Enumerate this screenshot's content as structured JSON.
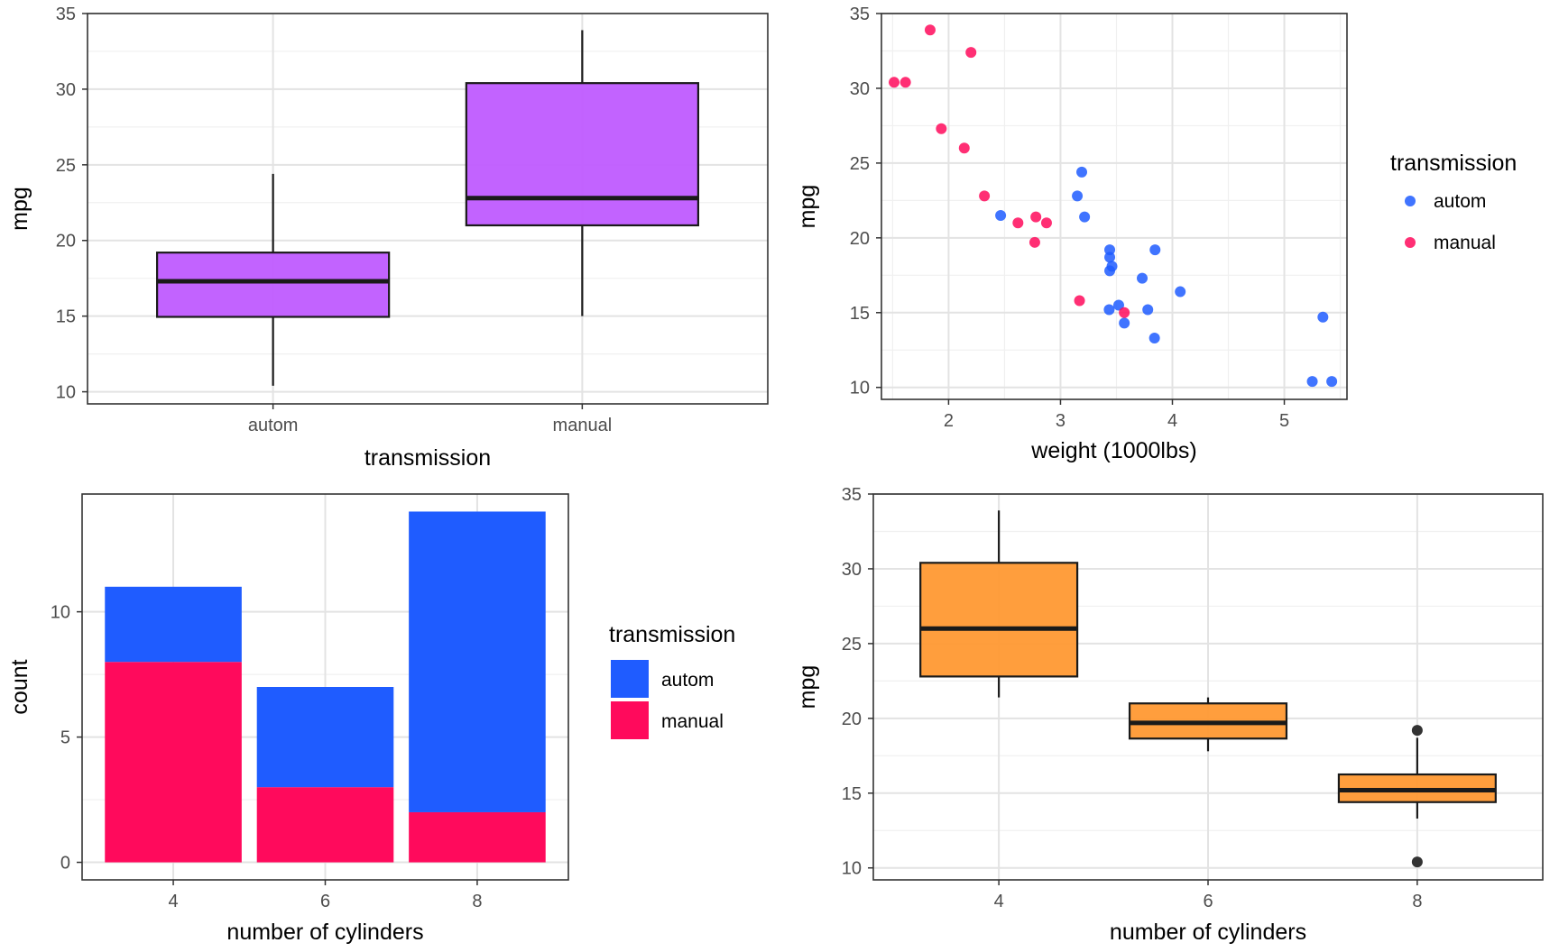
{
  "chart_data": [
    {
      "type": "boxplot",
      "xlabel": "transmission",
      "ylabel": "mpg",
      "categories": [
        "autom",
        "manual"
      ],
      "ylim": [
        9.2,
        35.0
      ],
      "yticks": [
        10,
        15,
        20,
        25,
        30,
        35
      ],
      "grid": true,
      "fill": "#bf5bff",
      "boxes": [
        {
          "category": "autom",
          "min": 10.4,
          "q1": 14.95,
          "median": 17.3,
          "q3": 19.2,
          "max": 24.4,
          "outliers": []
        },
        {
          "category": "manual",
          "min": 15.0,
          "q1": 21.0,
          "median": 22.8,
          "q3": 30.4,
          "max": 33.9,
          "outliers": []
        }
      ]
    },
    {
      "type": "scatter",
      "xlabel": "weight (1000lbs)",
      "ylabel": "mpg",
      "xlim": [
        1.4,
        5.56
      ],
      "ylim": [
        9.2,
        35.0
      ],
      "xticks": [
        2,
        3,
        4,
        5
      ],
      "yticks": [
        10,
        15,
        20,
        25,
        30,
        35
      ],
      "grid": true,
      "legend": {
        "title": "transmission",
        "position": "right"
      },
      "series": [
        {
          "name": "autom",
          "color": "#1f5cff",
          "x": [
            2.465,
            3.215,
            3.44,
            3.46,
            3.57,
            3.19,
            3.15,
            3.44,
            3.44,
            4.07,
            3.73,
            3.78,
            5.25,
            5.424,
            5.345,
            3.52,
            3.435,
            3.84,
            3.845
          ],
          "y": [
            21.5,
            21.4,
            18.7,
            18.1,
            14.3,
            24.4,
            22.8,
            19.2,
            17.8,
            16.4,
            17.3,
            15.2,
            10.4,
            10.4,
            14.7,
            15.5,
            15.2,
            13.3,
            19.2
          ]
        },
        {
          "name": "manual",
          "color": "#ff0a5c",
          "x": [
            2.62,
            2.875,
            2.32,
            2.2,
            1.615,
            1.835,
            1.935,
            2.14,
            1.513,
            3.17,
            2.77,
            3.57,
            2.78
          ],
          "y": [
            21.0,
            21.0,
            22.8,
            32.4,
            30.4,
            33.9,
            27.3,
            26.0,
            30.4,
            15.8,
            19.7,
            15.0,
            21.4
          ]
        }
      ]
    },
    {
      "type": "bar",
      "stacked": true,
      "xlabel": "number of cylinders",
      "ylabel": "count",
      "categories": [
        "4",
        "6",
        "8"
      ],
      "ylim": [
        -0.7,
        14.7
      ],
      "yticks": [
        0,
        5,
        10
      ],
      "grid": true,
      "legend": {
        "title": "transmission",
        "position": "right"
      },
      "series": [
        {
          "name": "manual",
          "color": "#ff0a5c",
          "values": [
            8,
            3,
            2
          ]
        },
        {
          "name": "autom",
          "color": "#1f5cff",
          "values": [
            3,
            4,
            12
          ]
        }
      ]
    },
    {
      "type": "boxplot",
      "xlabel": "number of cylinders",
      "ylabel": "mpg",
      "categories": [
        "4",
        "6",
        "8"
      ],
      "ylim": [
        9.2,
        35.0
      ],
      "yticks": [
        10,
        15,
        20,
        25,
        30,
        35
      ],
      "grid": true,
      "fill": "#ff9933",
      "boxes": [
        {
          "category": "4",
          "min": 21.4,
          "q1": 22.8,
          "median": 26.0,
          "q3": 30.4,
          "max": 33.9,
          "outliers": []
        },
        {
          "category": "6",
          "min": 17.8,
          "q1": 18.65,
          "median": 19.7,
          "q3": 21.0,
          "max": 21.4,
          "outliers": []
        },
        {
          "category": "8",
          "min": 13.3,
          "q1": 14.4,
          "median": 15.2,
          "q3": 16.25,
          "max": 18.7,
          "outliers": [
            10.4,
            19.2
          ]
        }
      ]
    }
  ]
}
